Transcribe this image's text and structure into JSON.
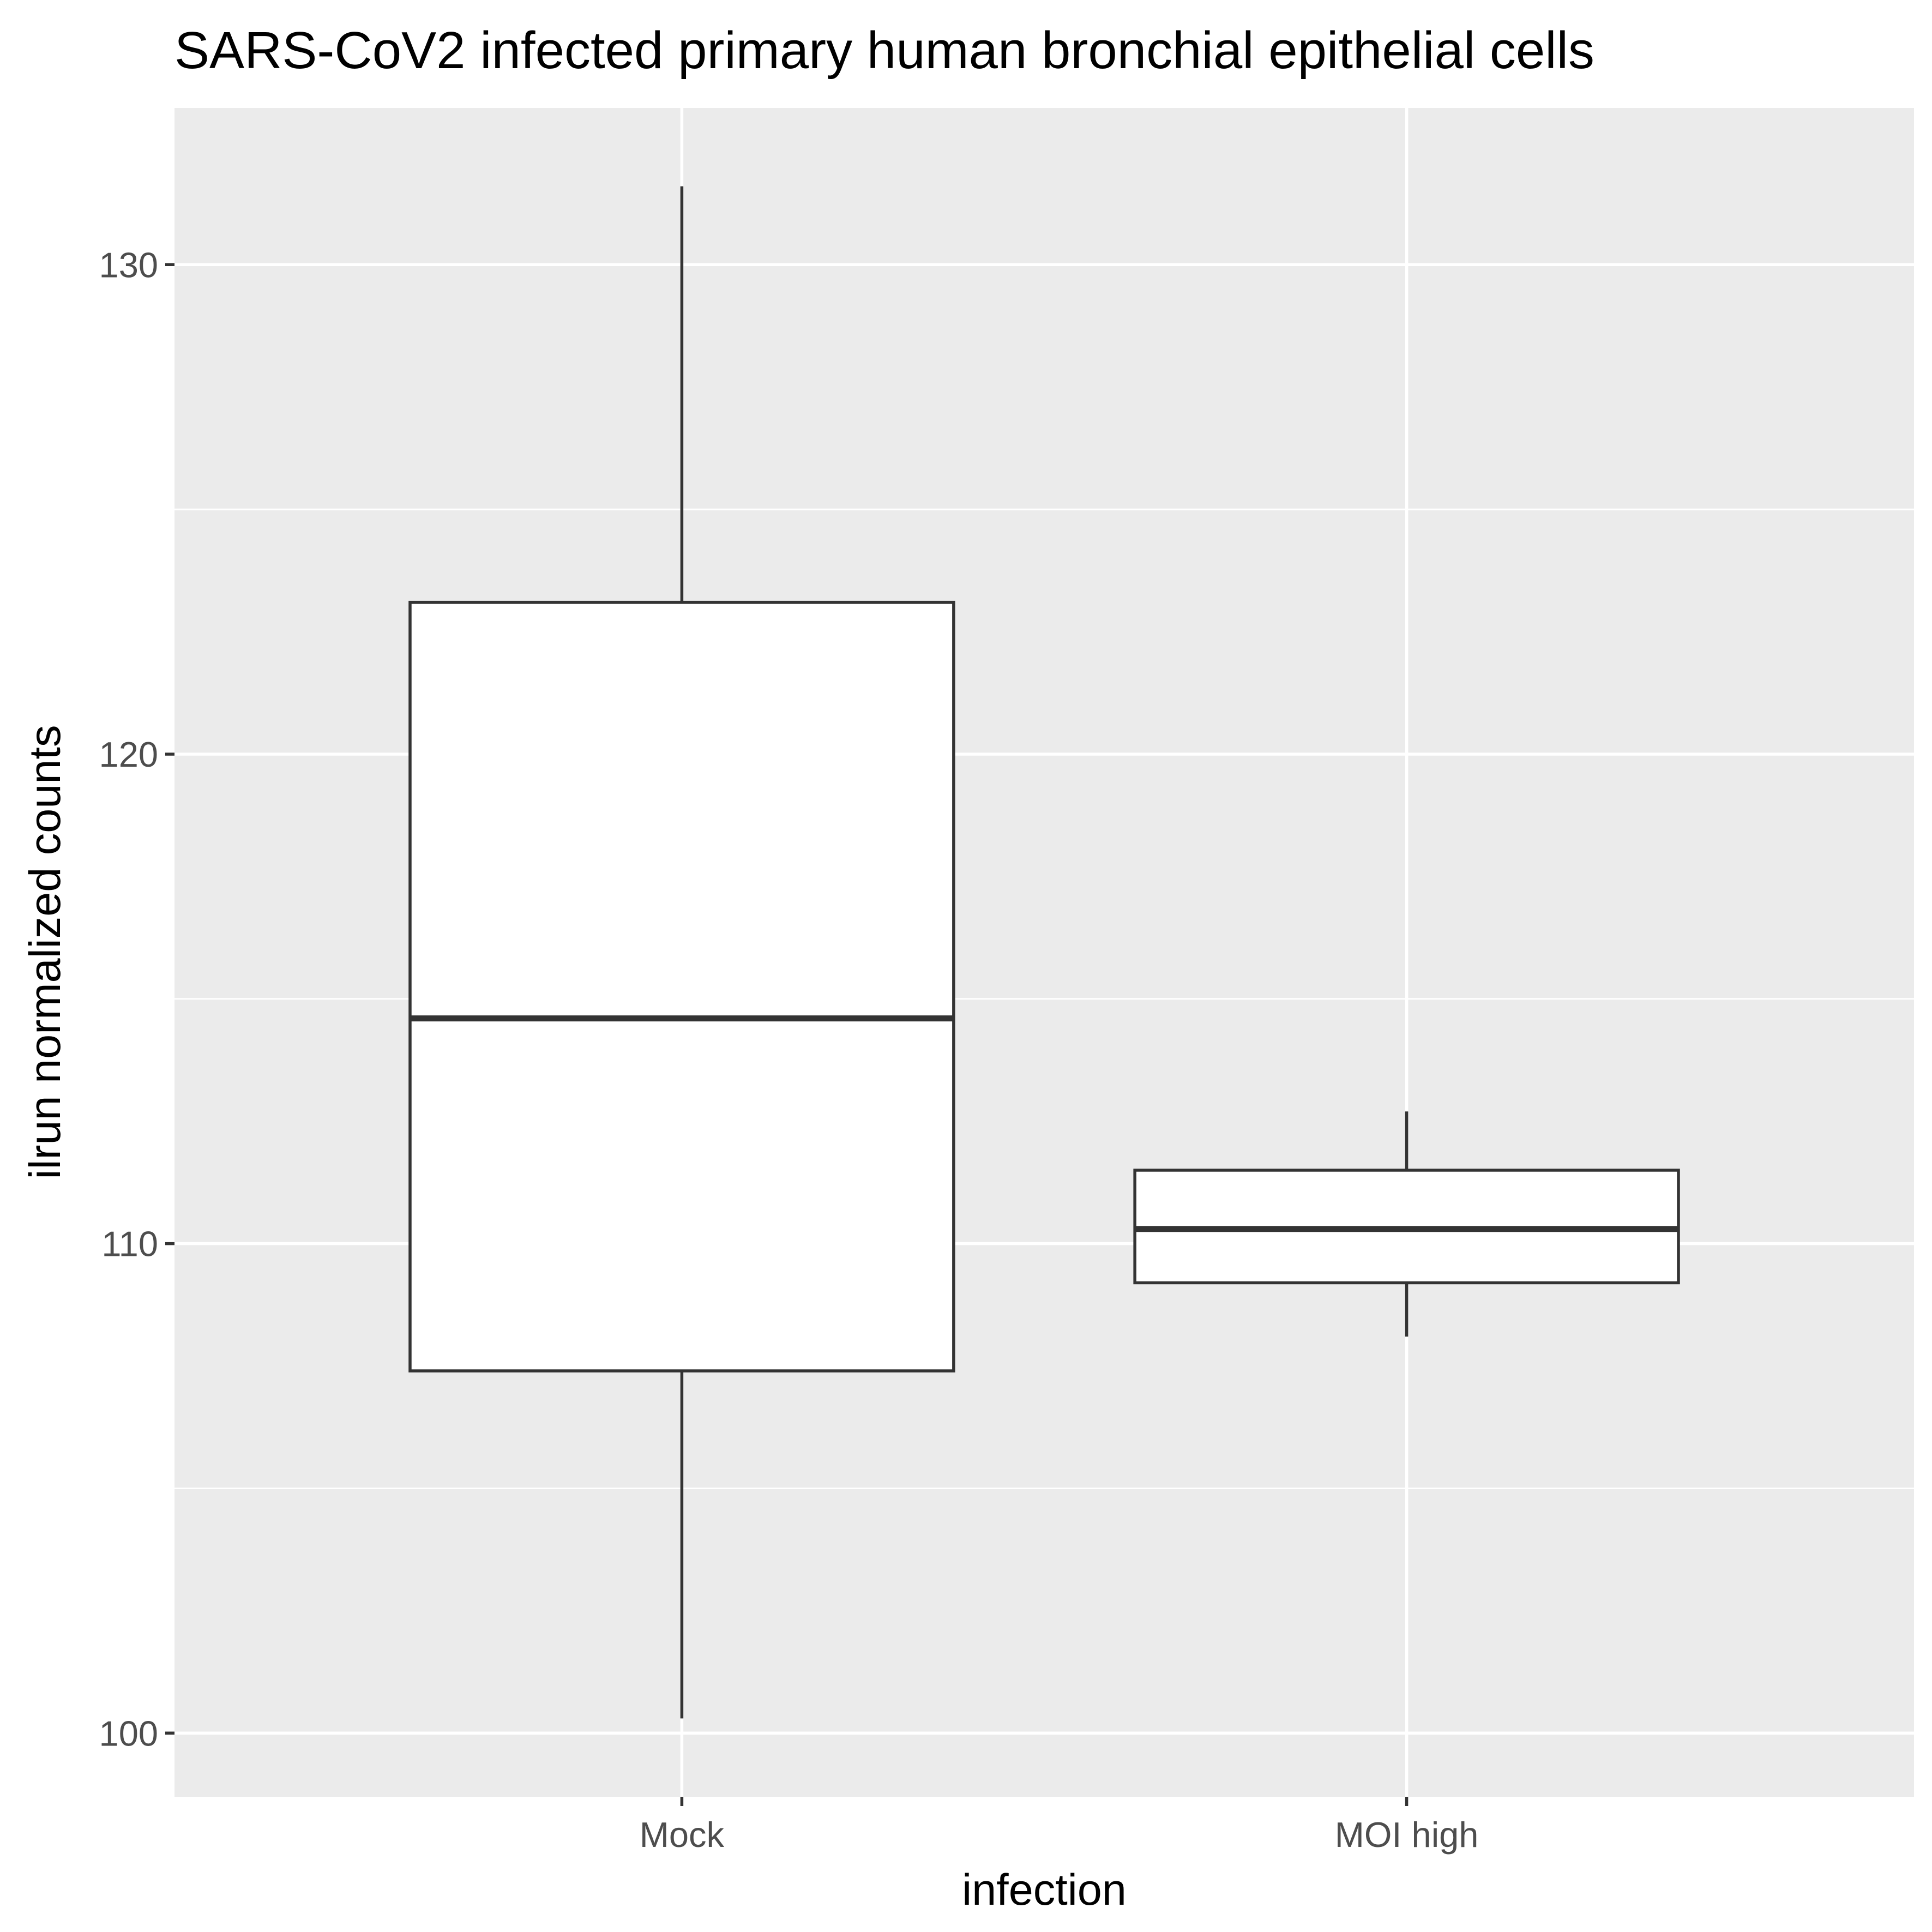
{
  "chart_data": {
    "type": "boxplot",
    "title": "SARS-CoV2 infected primary human bronchial epithelial cells",
    "xlabel": "infection",
    "ylabel": "ilrun normalized counts",
    "categories": [
      "Mock",
      "MOI high"
    ],
    "boxes": [
      {
        "category": "Mock",
        "whisker_low": 100.3,
        "q1": 107.4,
        "median": 114.6,
        "q3": 123.1,
        "whisker_high": 131.6
      },
      {
        "category": "MOI high",
        "whisker_low": 108.1,
        "q1": 109.2,
        "median": 110.3,
        "q3": 111.5,
        "whisker_high": 112.7
      }
    ],
    "yticks": [
      100,
      110,
      120,
      130
    ],
    "ylim": [
      98.7,
      133.2
    ],
    "grid": true,
    "legend": "none",
    "colors": {
      "panel": "#EBEBEB",
      "grid": "#FFFFFF",
      "box_fill": "#FFFFFF",
      "box_line": "#333333",
      "tick": "#333333",
      "tick_label": "#4D4D4D"
    }
  }
}
